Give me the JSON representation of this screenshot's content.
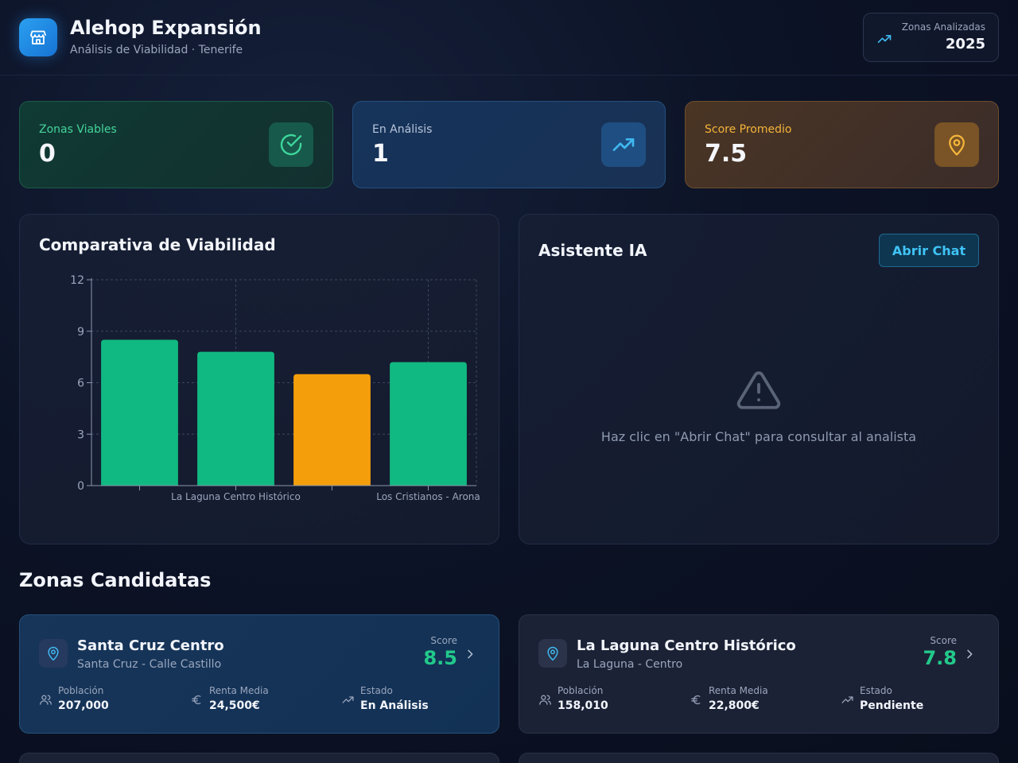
{
  "header": {
    "title": "Alehop Expansión",
    "subtitle": "Análisis de Viabilidad · Tenerife",
    "analyzed_label": "Zonas Analizadas",
    "analyzed_value": "2025"
  },
  "stats": [
    {
      "label": "Zonas Viables",
      "value": "0",
      "icon": "check-circle-icon"
    },
    {
      "label": "En Análisis",
      "value": "1",
      "icon": "trending-up-icon"
    },
    {
      "label": "Score Promedio",
      "value": "7.5",
      "icon": "map-pin-icon"
    }
  ],
  "chart_panel": {
    "title": "Comparativa de Viabilidad"
  },
  "chart_data": {
    "type": "bar",
    "categories": [
      "",
      "La Laguna Centro Histórico",
      "",
      "Los Cristianos - Arona"
    ],
    "values": [
      8.5,
      7.8,
      6.5,
      7.2
    ],
    "colors": [
      "#10b981",
      "#10b981",
      "#f59e0b",
      "#10b981"
    ],
    "yticks": [
      0,
      3,
      6,
      9,
      12
    ],
    "ylim": [
      0,
      12
    ],
    "grid": true
  },
  "ai_panel": {
    "title": "Asistente IA",
    "button_label": "Abrir Chat",
    "hint": "Haz clic en \"Abrir Chat\" para consultar al analista"
  },
  "zones_section": {
    "title": "Zonas Candidatas"
  },
  "zones": [
    {
      "name": "Santa Cruz Centro",
      "location": "Santa Cruz - Calle Castillo",
      "score_label": "Score",
      "score": "8.5",
      "population_label": "Población",
      "population": "207,000",
      "income_label": "Renta Media",
      "income": "24,500€",
      "status_label": "Estado",
      "status": "En Análisis"
    },
    {
      "name": "La Laguna Centro Histórico",
      "location": "La Laguna - Centro",
      "score_label": "Score",
      "score": "7.8",
      "population_label": "Población",
      "population": "158,010",
      "income_label": "Renta Media",
      "income": "22,800€",
      "status_label": "Estado",
      "status": "Pendiente"
    }
  ]
}
